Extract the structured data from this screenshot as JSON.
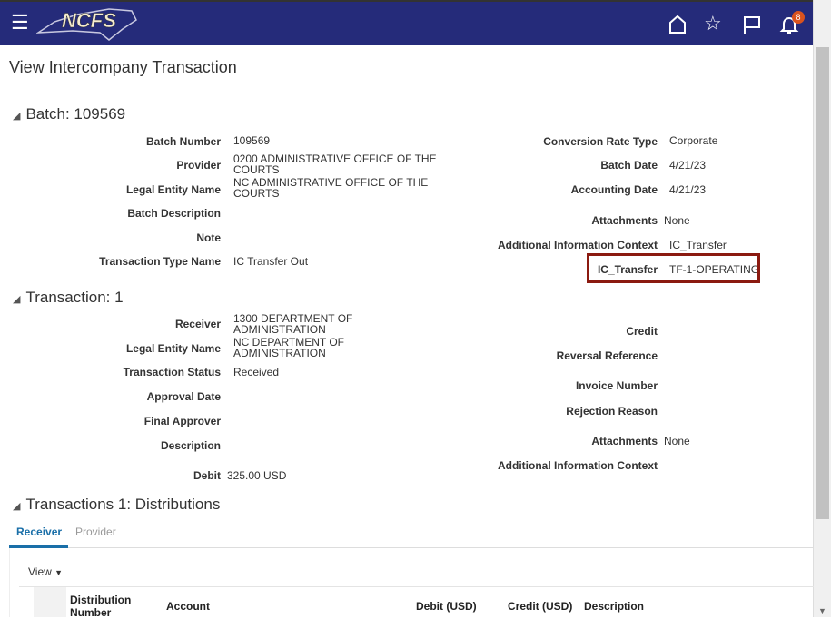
{
  "header": {
    "logo_text": "NCFS",
    "notification_count": "8"
  },
  "page": {
    "title": "View Intercompany Transaction"
  },
  "batch": {
    "heading": "Batch: 109569",
    "left": [
      {
        "label": "Batch Number",
        "value": "109569"
      },
      {
        "label": "Provider",
        "value": "0200 ADMINISTRATIVE OFFICE OF THE COURTS"
      },
      {
        "label": "Legal Entity Name",
        "value": "NC ADMINISTRATIVE OFFICE OF THE COURTS"
      },
      {
        "label": "Batch Description",
        "value": ""
      },
      {
        "label": "Note",
        "value": ""
      },
      {
        "label": "Transaction Type Name",
        "value": "IC Transfer Out"
      }
    ],
    "right": [
      {
        "label": "Conversion Rate Type",
        "value": "Corporate"
      },
      {
        "label": "Batch Date",
        "value": "4/21/23"
      },
      {
        "label": "Accounting Date",
        "value": "4/21/23"
      },
      {
        "label": "Attachments",
        "value": "None"
      },
      {
        "label": "Additional Information Context",
        "value": "IC_Transfer"
      },
      {
        "label": "IC_Transfer",
        "value": "TF-1-OPERATING"
      }
    ]
  },
  "transaction": {
    "heading": "Transaction: 1",
    "left": [
      {
        "label": "Receiver",
        "value": "1300 DEPARTMENT OF ADMINISTRATION"
      },
      {
        "label": "Legal Entity Name",
        "value": "NC DEPARTMENT OF ADMINISTRATION"
      },
      {
        "label": "Transaction Status",
        "value": "Received"
      },
      {
        "label": "Approval Date",
        "value": ""
      },
      {
        "label": "Final Approver",
        "value": ""
      },
      {
        "label": "Description",
        "value": ""
      },
      {
        "label": "Debit",
        "value": "325.00 USD"
      }
    ],
    "right": [
      {
        "label": "Credit",
        "value": ""
      },
      {
        "label": "Reversal Reference",
        "value": ""
      },
      {
        "label": "Invoice Number",
        "value": ""
      },
      {
        "label": "Rejection Reason",
        "value": ""
      },
      {
        "label": "Attachments",
        "value": "None"
      },
      {
        "label": "Additional Information Context",
        "value": ""
      }
    ]
  },
  "distributions": {
    "heading": "Transactions 1: Distributions",
    "tabs": [
      "Receiver",
      "Provider"
    ],
    "view_label": "View",
    "columns": [
      "Distribution Number",
      "Account",
      "Debit (USD)",
      "Credit (USD)",
      "Description"
    ]
  }
}
